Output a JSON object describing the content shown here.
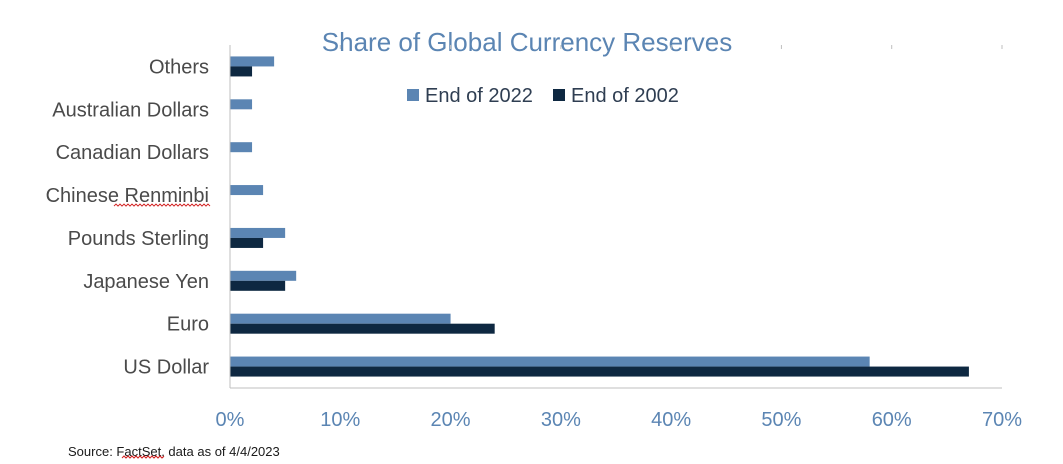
{
  "chart_data": {
    "type": "bar",
    "orientation": "horizontal",
    "title": "Share of Global Currency Reserves",
    "categories": [
      "Others",
      "Australian Dollars",
      "Canadian Dollars",
      "Chinese Renminbi",
      "Pounds Sterling",
      "Japanese Yen",
      "Euro",
      "US Dollar"
    ],
    "series": [
      {
        "name": "End of 2022",
        "color": "#5B85B3",
        "values": [
          4,
          2,
          2,
          3,
          5,
          6,
          20,
          58
        ]
      },
      {
        "name": "End of 2002",
        "color": "#0E2841",
        "values": [
          2,
          0,
          0,
          0,
          3,
          5,
          24,
          67
        ]
      }
    ],
    "x_ticks": [
      "0%",
      "10%",
      "20%",
      "30%",
      "40%",
      "50%",
      "60%",
      "70%"
    ],
    "xlim": [
      0,
      70
    ],
    "grid": false,
    "legend_position": "top"
  },
  "source_note": "Source: FactSet, data as of 4/4/2023"
}
